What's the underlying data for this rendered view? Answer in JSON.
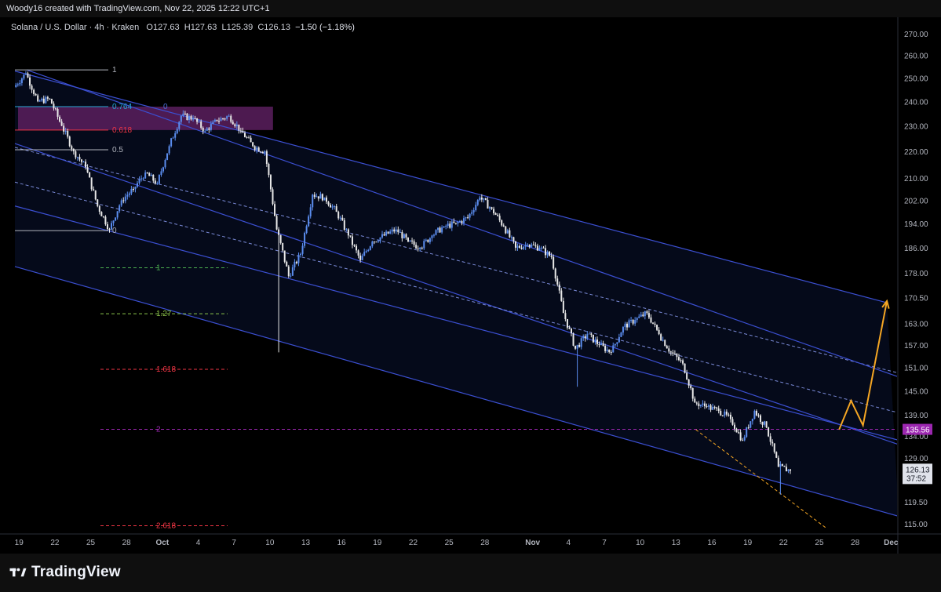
{
  "header": {
    "attribution": "Woody16 created with TradingView.com, Nov 22, 2025 12:22 UTC+1"
  },
  "legend": {
    "symbol": "Solana / U.S. Dollar · 4h · Kraken",
    "open": "O127.63",
    "high": "H127.63",
    "low": "L125.39",
    "close": "C126.13",
    "change": "−1.50 (−1.18%)"
  },
  "branding": {
    "name": "TradingView"
  },
  "colors": {
    "background": "#000000",
    "candle_up": "#5b8def",
    "candle_down": "#e8e8e8",
    "channel": "#3b4fd1",
    "projection": "#f5a623",
    "zone": "#5a1f5e",
    "current_price_bg": "#e0e3eb",
    "target_label_bg": "#9c27b0"
  },
  "price_labels": {
    "current_price": "126.13",
    "countdown": "37:52",
    "target_price": "135.56"
  },
  "fib_retracement": [
    {
      "label": "1",
      "price": 253.5,
      "color": "#b2b5be"
    },
    {
      "label": "0.764",
      "price": 237.8,
      "color": "#26a9d6"
    },
    {
      "label": "0.618",
      "price": 228.3,
      "color": "#f23645"
    },
    {
      "label": "0.5",
      "price": 220.6,
      "color": "#b2b5be"
    },
    {
      "label": "0",
      "price": 191.6,
      "color": "#b2b5be"
    }
  ],
  "fib_extension": [
    {
      "label": "0",
      "price": 237.8,
      "color": "#4a6fd8"
    },
    {
      "label": "1",
      "price": 179.6,
      "color": "#4caf50"
    },
    {
      "label": "1.27",
      "price": 165.8,
      "color": "#8bc34a"
    },
    {
      "label": "1.618",
      "price": 150.5,
      "color": "#f23645"
    },
    {
      "label": "2",
      "price": 135.56,
      "color": "#9c27b0"
    },
    {
      "label": "2.618",
      "price": 114.6,
      "color": "#f23645"
    }
  ],
  "chart_data": {
    "type": "candlestick",
    "title": "Solana / U.S. Dollar · 4h · Kraken",
    "timeframe": "4h",
    "y_axis": {
      "scale": "log",
      "ticks": [
        270,
        260,
        250,
        240,
        230,
        220,
        210,
        202,
        194,
        186,
        178,
        170.5,
        163,
        157,
        151,
        145,
        139,
        134,
        129,
        119.5,
        115
      ],
      "tick_labels": [
        "270.00",
        "260.00",
        "250.00",
        "240.00",
        "230.00",
        "220.00",
        "210.00",
        "202.00",
        "194.00",
        "186.00",
        "178.00",
        "170.50",
        "163.00",
        "157.00",
        "151.00",
        "145.00",
        "139.00",
        "134.00",
        "129.00",
        "119.50",
        "115.00"
      ]
    },
    "x_axis": {
      "range": [
        "2025-09-18",
        "2025-12-01"
      ],
      "tick_labels": [
        "19",
        "22",
        "25",
        "28",
        "Oct",
        "4",
        "7",
        "10",
        "13",
        "16",
        "19",
        "22",
        "25",
        "28",
        "Nov",
        "4",
        "7",
        "10",
        "13",
        "16",
        "19",
        "22",
        "25",
        "28",
        "Dec"
      ],
      "tick_dates": [
        "2025-09-19",
        "2025-09-22",
        "2025-09-25",
        "2025-09-28",
        "2025-10-01",
        "2025-10-04",
        "2025-10-07",
        "2025-10-10",
        "2025-10-13",
        "2025-10-16",
        "2025-10-19",
        "2025-10-22",
        "2025-10-25",
        "2025-10-28",
        "2025-11-01",
        "2025-11-04",
        "2025-11-07",
        "2025-11-10",
        "2025-11-13",
        "2025-11-16",
        "2025-11-19",
        "2025-11-22",
        "2025-11-25",
        "2025-11-28",
        "2025-12-01"
      ]
    },
    "price_path": [
      [
        "2025-09-18",
        246
      ],
      [
        "2025-09-19",
        252
      ],
      [
        "2025-09-20",
        240
      ],
      [
        "2025-09-21",
        241
      ],
      [
        "2025-09-22",
        230
      ],
      [
        "2025-09-23",
        220
      ],
      [
        "2025-09-24",
        214
      ],
      [
        "2025-09-25",
        200
      ],
      [
        "2025-09-26",
        192
      ],
      [
        "2025-09-27",
        202
      ],
      [
        "2025-09-28",
        206
      ],
      [
        "2025-09-29",
        212
      ],
      [
        "2025-09-30",
        208
      ],
      [
        "2025-10-01",
        222
      ],
      [
        "2025-10-02",
        234
      ],
      [
        "2025-10-03",
        233
      ],
      [
        "2025-10-04",
        228
      ],
      [
        "2025-10-05",
        232
      ],
      [
        "2025-10-06",
        234
      ],
      [
        "2025-10-07",
        228
      ],
      [
        "2025-10-08",
        222
      ],
      [
        "2025-10-09",
        220
      ],
      [
        "2025-10-10",
        192
      ],
      [
        "2025-10-11",
        177
      ],
      [
        "2025-10-12",
        184
      ],
      [
        "2025-10-13",
        204
      ],
      [
        "2025-10-14",
        203
      ],
      [
        "2025-10-15",
        198
      ],
      [
        "2025-10-16",
        190
      ],
      [
        "2025-10-17",
        182
      ],
      [
        "2025-10-18",
        188
      ],
      [
        "2025-10-19",
        190
      ],
      [
        "2025-10-20",
        192
      ],
      [
        "2025-10-21",
        188
      ],
      [
        "2025-10-22",
        186
      ],
      [
        "2025-10-23",
        190
      ],
      [
        "2025-10-24",
        193
      ],
      [
        "2025-10-25",
        194
      ],
      [
        "2025-10-26",
        196
      ],
      [
        "2025-10-27",
        203
      ],
      [
        "2025-10-28",
        199
      ],
      [
        "2025-10-29",
        193
      ],
      [
        "2025-10-30",
        186
      ],
      [
        "2025-10-31",
        187
      ],
      [
        "2025-11-01",
        186
      ],
      [
        "2025-11-02",
        183
      ],
      [
        "2025-11-03",
        166
      ],
      [
        "2025-11-04",
        156
      ],
      [
        "2025-11-05",
        160
      ],
      [
        "2025-11-06",
        157
      ],
      [
        "2025-11-07",
        155
      ],
      [
        "2025-11-08",
        162
      ],
      [
        "2025-11-09",
        164
      ],
      [
        "2025-11-10",
        166
      ],
      [
        "2025-11-11",
        160
      ],
      [
        "2025-11-12",
        155
      ],
      [
        "2025-11-13",
        152
      ],
      [
        "2025-11-14",
        142
      ],
      [
        "2025-11-15",
        141
      ],
      [
        "2025-11-16",
        140
      ],
      [
        "2025-11-17",
        138
      ],
      [
        "2025-11-18",
        133
      ],
      [
        "2025-11-19",
        140
      ],
      [
        "2025-11-20",
        136
      ],
      [
        "2025-11-21",
        127
      ],
      [
        "2025-11-22",
        126.13
      ]
    ],
    "wicks": [
      {
        "date": "2025-10-10",
        "low": 155
      },
      {
        "date": "2025-11-04",
        "low": 146
      },
      {
        "date": "2025-11-21",
        "low": 121
      }
    ],
    "annotations": {
      "resistance_zone": {
        "from": "2025-09-18",
        "to": "2025-10-10",
        "low": 228.3,
        "high": 237.8
      },
      "channel_upper": [
        [
          "2025-09-19",
          253.5
        ],
        [
          "2025-12-01",
          148.5
        ]
      ],
      "channel_mid": [
        [
          "2025-09-18",
          223
        ],
        [
          "2025-12-01",
          132
        ]
      ],
      "channel_mid_dashed_a": [
        [
          "2025-09-18",
          221.5
        ],
        [
          "2025-12-01",
          149.5
        ]
      ],
      "channel_mid_dashed_b": [
        [
          "2025-09-18",
          208.5
        ],
        [
          "2025-12-01",
          139.5
        ]
      ],
      "channel_lower": [
        [
          "2025-09-18",
          200
        ],
        [
          "2025-12-01",
          133
        ]
      ],
      "channel_outer": [
        [
          "2025-09-18",
          180
        ],
        [
          "2025-12-01",
          116.5
        ]
      ],
      "channel_top_right": [
        [
          "2025-09-18",
          253
        ],
        [
          "2025-11-30",
          169
        ]
      ],
      "support_dashed": [
        [
          "2025-11-14",
          135.5
        ],
        [
          "2025-11-25",
          114
        ]
      ],
      "projection_path": [
        [
          "2025-11-26",
          135.5
        ],
        [
          "2025-11-27",
          142.5
        ],
        [
          "2025-11-28",
          136.5
        ],
        [
          "2025-11-30",
          169.5
        ]
      ],
      "target_line_price": 135.56
    }
  }
}
